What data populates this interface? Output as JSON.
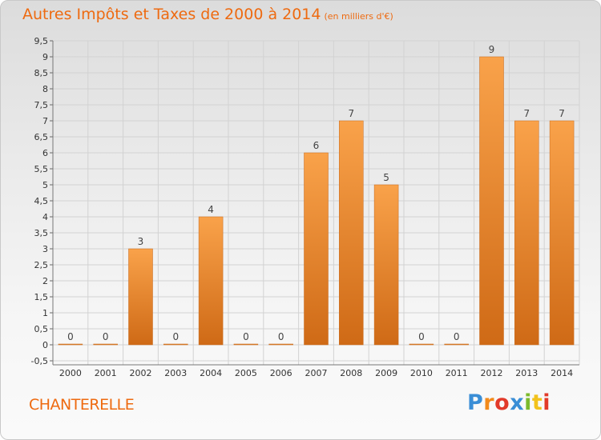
{
  "title": "Autres Impôts et Taxes de 2000 à 2014",
  "unit": "(en milliers d'€)",
  "place": "CHANTERELLE",
  "brand": "Proxiti",
  "colors": {
    "bar_top": "#f9a24a",
    "bar_bottom": "#cf6a16",
    "title": "#ee6a10",
    "brand_letters": [
      "#3a8ed6",
      "#f28a1c",
      "#e23a2a",
      "#3a8ed6",
      "#7cba2c",
      "#f2c21c",
      "#e23a2a"
    ]
  },
  "chart_data": {
    "type": "bar",
    "categories": [
      "2000",
      "2001",
      "2002",
      "2003",
      "2004",
      "2005",
      "2006",
      "2007",
      "2008",
      "2009",
      "2010",
      "2011",
      "2012",
      "2013",
      "2014"
    ],
    "values": [
      0,
      0,
      3,
      0,
      4,
      0,
      0,
      6,
      7,
      5,
      0,
      0,
      9,
      7,
      7
    ],
    "data_labels": [
      "0",
      "0",
      "3",
      "0",
      "4",
      "0",
      "0",
      "6",
      "7",
      "5",
      "0",
      "0",
      "9",
      "7",
      "7"
    ],
    "ylim": [
      -0.5,
      9.5
    ],
    "yticks": [
      "-0,5",
      "0",
      "0,5",
      "1",
      "1,5",
      "2",
      "2,5",
      "3",
      "3,5",
      "4",
      "4,5",
      "5",
      "5,5",
      "6",
      "6,5",
      "7",
      "7,5",
      "8",
      "8,5",
      "9",
      "9,5"
    ],
    "grid": true,
    "legend": "none"
  }
}
